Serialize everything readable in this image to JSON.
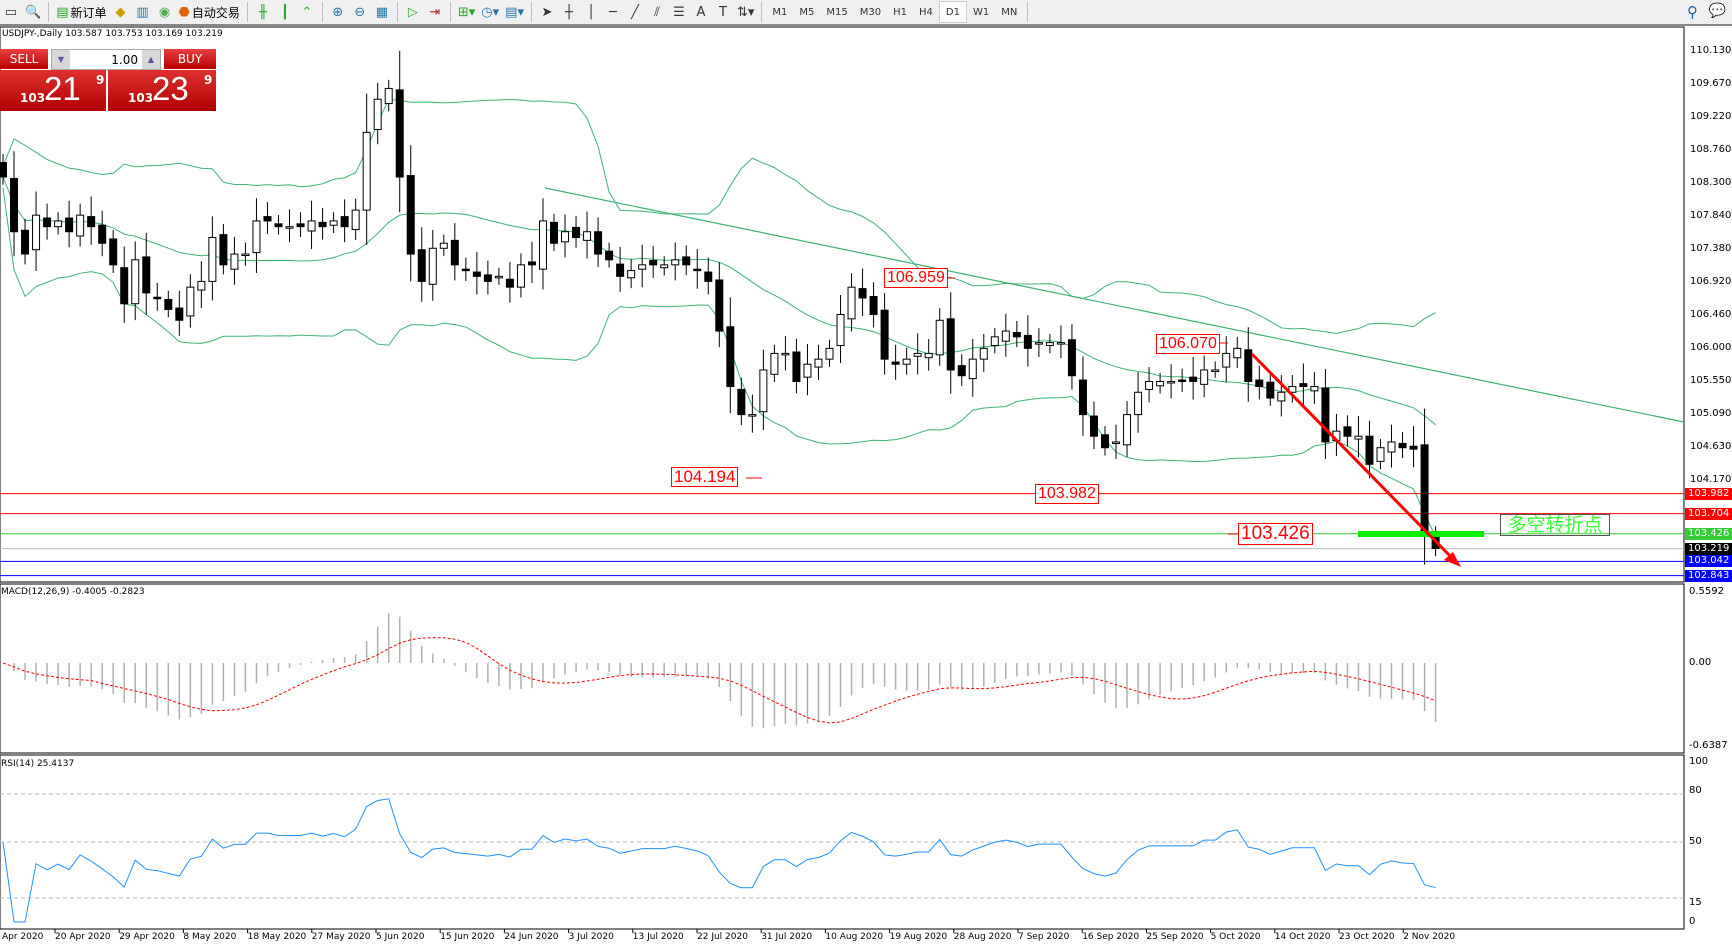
{
  "toolbar": {
    "new_order": "新订单",
    "auto_trading": "自动交易",
    "timeframes": [
      "M1",
      "M5",
      "M15",
      "M30",
      "H1",
      "H4",
      "D1",
      "W1",
      "MN"
    ],
    "active_timeframe": "D1"
  },
  "header": {
    "symbol_line": "USDJPY-,Daily  103.587 103.753 103.169 103.219"
  },
  "trade_panel": {
    "sell_label": "SELL",
    "buy_label": "BUY",
    "lot": "1.00",
    "sell_prefix": "103",
    "sell_main": "21",
    "sell_pip": "9",
    "buy_prefix": "103",
    "buy_main": "23",
    "buy_pip": "9"
  },
  "price_axis": [
    "110.130",
    "109.670",
    "109.220",
    "108.760",
    "108.300",
    "107.840",
    "107.380",
    "106.920",
    "106.460",
    "106.000",
    "105.550",
    "105.090",
    "104.630",
    "104.170"
  ],
  "price_tags": [
    {
      "value": "103.982",
      "color": "#ff0000"
    },
    {
      "value": "103.704",
      "color": "#ff0000"
    },
    {
      "value": "103.426",
      "color": "#33cc33"
    },
    {
      "value": "103.219",
      "color": "#000000"
    },
    {
      "value": "103.042",
      "color": "#0000ff"
    },
    {
      "value": "102.843",
      "color": "#0000ff"
    }
  ],
  "annotations": {
    "low1": "104.194",
    "low2": "103.982",
    "high1": "106.959",
    "high2": "106.070",
    "pivot": "103.426",
    "pivot_text": "多空转折点"
  },
  "macd": {
    "label": "MACD(12,26,9) -0.4005 -0.2823",
    "axis": [
      "0.5592",
      "0.00",
      "-0.6387"
    ]
  },
  "rsi": {
    "label": "RSI(14) 25.4137",
    "axis": [
      "100",
      "80",
      "50",
      "15",
      "0"
    ]
  },
  "dates": [
    "Apr 2020",
    "20 Apr 2020",
    "29 Apr 2020",
    "8 May 2020",
    "18 May 2020",
    "27 May 2020",
    "5 Jun 2020",
    "15 Jun 2020",
    "24 Jun 2020",
    "3 Jul 2020",
    "13 Jul 2020",
    "22 Jul 2020",
    "31 Jul 2020",
    "10 Aug 2020",
    "19 Aug 2020",
    "28 Aug 2020",
    "7 Sep 2020",
    "16 Sep 2020",
    "25 Sep 2020",
    "5 Oct 2020",
    "14 Oct 2020",
    "23 Oct 2020",
    "2 Nov 2020"
  ],
  "chart_data": {
    "type": "candlestick",
    "symbol": "USDJPY-",
    "timeframe": "Daily",
    "ylim": [
      102.75,
      110.46
    ],
    "closes": [
      108.38,
      107.62,
      107.31,
      107.85,
      107.69,
      107.77,
      107.62,
      107.85,
      107.69,
      107.46,
      107.16,
      106.62,
      107.23,
      106.77,
      106.7,
      106.54,
      106.39,
      106.85,
      106.93,
      107.54,
      107.16,
      107.31,
      107.31,
      107.77,
      107.77,
      107.69,
      107.69,
      107.69,
      107.77,
      107.69,
      107.77,
      107.69,
      107.92,
      109.0,
      109.46,
      109.61,
      108.38,
      107.31,
      106.93,
      107.39,
      107.46,
      107.16,
      107.08,
      107.0,
      106.93,
      107.0,
      106.85,
      107.16,
      107.16,
      107.77,
      107.46,
      107.62,
      107.54,
      107.62,
      107.31,
      107.23,
      107.0,
      107.08,
      107.16,
      107.16,
      107.16,
      107.23,
      107.16,
      107.08,
      106.93,
      106.24,
      105.47,
      105.08,
      105.08,
      105.7,
      105.93,
      105.93,
      105.54,
      105.78,
      105.85,
      106.0,
      106.47,
      106.85,
      106.7,
      106.47,
      105.85,
      105.78,
      105.85,
      105.93,
      105.93,
      106.39,
      105.7,
      105.62,
      105.85,
      106.0,
      106.16,
      106.24,
      106.16,
      106.0,
      106.08,
      106.08,
      106.08,
      105.62,
      105.08,
      104.78,
      104.62,
      104.7,
      105.08,
      105.39,
      105.54,
      105.54,
      105.54,
      105.54,
      105.54,
      105.7,
      105.7,
      105.93,
      106.0,
      105.54,
      105.47,
      105.31,
      105.39,
      105.47,
      105.47,
      105.47,
      104.7,
      104.85,
      104.78,
      104.78,
      104.39,
      104.62,
      104.7,
      104.62,
      104.6,
      103.45,
      103.22
    ],
    "horizontal_lines": [
      103.982,
      103.704,
      103.426,
      103.219,
      103.042,
      102.843
    ],
    "indicators": [
      "Bollinger Bands",
      "Trendline",
      "MACD(12,26,9)",
      "RSI(14)"
    ],
    "colors": {
      "bands": "#3cb371",
      "bear": "#000000",
      "bull": "#ffffff",
      "arrow": "#ff0000",
      "rsi": "#1e90ff",
      "macd_signal": "#ff0000"
    }
  }
}
